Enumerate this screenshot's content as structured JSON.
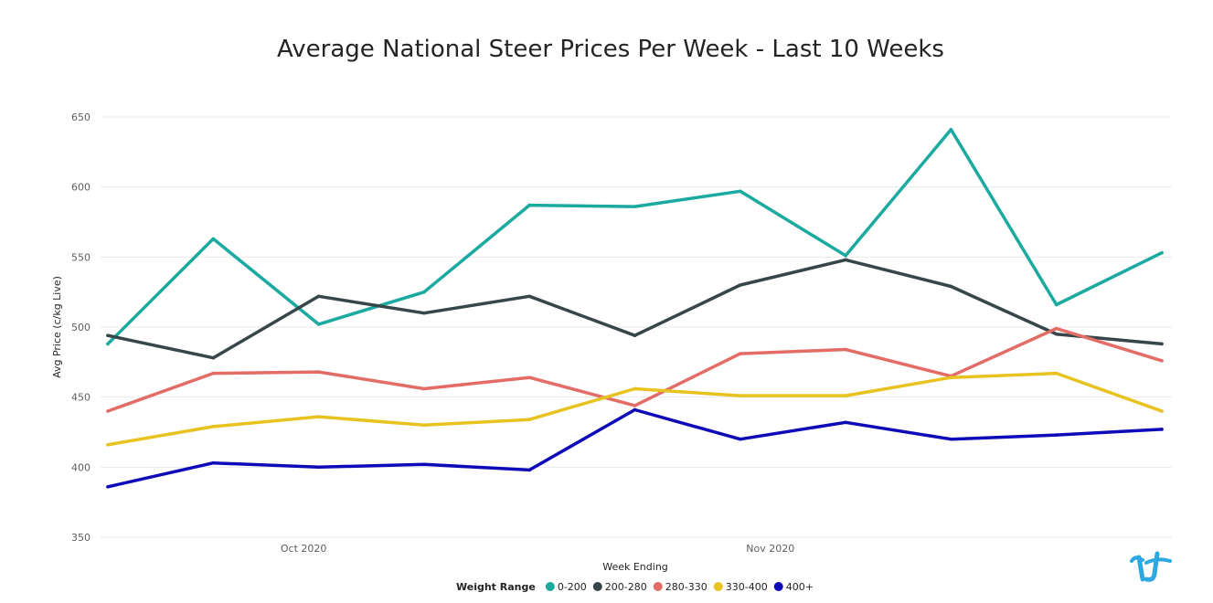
{
  "chart_data": {
    "type": "line",
    "title": "Average National Steer Prices Per Week - Last 10 Weeks",
    "xlabel": "Week Ending",
    "ylabel": "Avg Price (c/kg Live)",
    "ylim": [
      350,
      650
    ],
    "yticks": [
      350,
      400,
      450,
      500,
      550,
      600,
      650
    ],
    "x": [
      "2020-09-26",
      "2020-10-03",
      "2020-10-10",
      "2020-10-17",
      "2020-10-24",
      "2020-10-31",
      "2020-11-07",
      "2020-11-14",
      "2020-11-21",
      "2020-11-28",
      "2020-12-05"
    ],
    "x_tick_labels": [
      {
        "label": "Oct 2020",
        "date": "2020-10-09"
      },
      {
        "label": "Nov 2020",
        "date": "2020-11-09"
      }
    ],
    "grid": true,
    "legend": {
      "title": "Weight Range",
      "position": "bottom"
    },
    "series": [
      {
        "name": "0-200",
        "color": "#1aaa9f",
        "values": [
          488,
          563,
          502,
          525,
          587,
          586,
          597,
          551,
          641,
          516,
          553
        ]
      },
      {
        "name": "200-280",
        "color": "#374649",
        "values": [
          494,
          478,
          522,
          510,
          522,
          494,
          530,
          548,
          529,
          495,
          488
        ]
      },
      {
        "name": "280-330",
        "color": "#e46c67",
        "values": [
          440,
          467,
          468,
          456,
          464,
          444,
          481,
          484,
          465,
          499,
          476
        ]
      },
      {
        "name": "330-400",
        "color": "#e8c21e",
        "values": [
          416,
          429,
          436,
          430,
          434,
          456,
          451,
          451,
          464,
          467,
          440
        ]
      },
      {
        "name": "400+",
        "color": "#0f0ab8",
        "values": [
          386,
          403,
          400,
          402,
          398,
          441,
          420,
          432,
          420,
          423,
          427
        ]
      }
    ]
  },
  "logo": {
    "icon": "tt-logo-icon",
    "color": "#2ea8e0"
  }
}
